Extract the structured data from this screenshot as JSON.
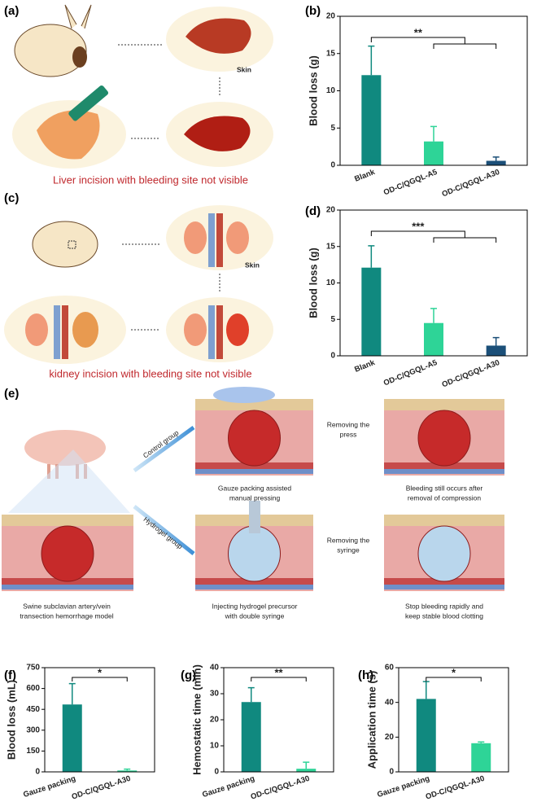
{
  "illustrations": {
    "a": {
      "label": "(a)",
      "skin": "Skin",
      "caption": "Liver incision with bleeding site not visible"
    },
    "c": {
      "label": "(c)",
      "skin": "Skin",
      "caption": "kidney incision with bleeding site not visible"
    },
    "e": {
      "label": "(e)",
      "control_group": "Control group",
      "hydrogel_group": "Hydrogel group",
      "remove_press": [
        "Removing the",
        "press"
      ],
      "remove_syringe": [
        "Removing the",
        "syringe"
      ],
      "captions": [
        [
          "Gauze packing assisted",
          "manual pressing"
        ],
        [
          "Bleeding still occurs after",
          "removal of compression"
        ],
        [
          "Swine subclavian artery/vein",
          "transection hemorrhage model"
        ],
        [
          "Injecting hydrogel precursor",
          "with double syringe"
        ],
        [
          "Stop bleeding rapidly and",
          "keep stable blood clotting"
        ]
      ]
    }
  },
  "chart_data": [
    {
      "type": "bar",
      "panel": "(b)",
      "ylabel": "Blood loss (g)",
      "categories": [
        "Blank",
        "OD-C/QGQL-A5",
        "OD-C/QGQL-A30"
      ],
      "values": [
        12.1,
        3.2,
        0.6
      ],
      "errors": [
        3.9,
        2.0,
        0.5
      ],
      "colors": [
        "#10897f",
        "#2ed497",
        "#1b4f78"
      ],
      "ylim": [
        0,
        20
      ],
      "yticks": [
        0,
        5,
        10,
        15,
        20
      ],
      "significance": "**"
    },
    {
      "type": "bar",
      "panel": "(d)",
      "ylabel": "Blood loss (g)",
      "categories": [
        "Blank",
        "OD-C/QGQL-A5",
        "OD-C/QGQL-A30"
      ],
      "values": [
        12.1,
        4.5,
        1.4
      ],
      "errors": [
        3.0,
        2.0,
        1.1
      ],
      "colors": [
        "#10897f",
        "#2ed497",
        "#1b4f78"
      ],
      "ylim": [
        0,
        20
      ],
      "yticks": [
        0,
        5,
        10,
        15,
        20
      ],
      "significance": "***"
    },
    {
      "type": "bar",
      "panel": "(f)",
      "ylabel": "Blood loss (mL)",
      "categories": [
        "Gauze packing",
        "OD-C/QGQL-A30"
      ],
      "values": [
        485,
        10
      ],
      "errors": [
        150,
        10
      ],
      "colors": [
        "#10897f",
        "#2ed497"
      ],
      "ylim": [
        0,
        750
      ],
      "yticks": [
        0,
        150,
        300,
        450,
        600,
        750
      ],
      "significance": "*"
    },
    {
      "type": "bar",
      "panel": "(g)",
      "ylabel": "Hemostatic time (min)",
      "categories": [
        "Gauze packing",
        "OD-C/QGQL-A30"
      ],
      "values": [
        26.8,
        1.2
      ],
      "errors": [
        5.5,
        2.5
      ],
      "colors": [
        "#10897f",
        "#2ed497"
      ],
      "ylim": [
        0,
        40
      ],
      "yticks": [
        0,
        10,
        20,
        30,
        40
      ],
      "significance": "**"
    },
    {
      "type": "bar",
      "panel": "(h)",
      "ylabel": "Application time (s)",
      "categories": [
        "Gauze packing",
        "OD-C/QGQL-A30"
      ],
      "values": [
        42,
        16.5
      ],
      "errors": [
        10,
        0.7
      ],
      "colors": [
        "#10897f",
        "#2ed497"
      ],
      "ylim": [
        0,
        60
      ],
      "yticks": [
        0,
        20,
        40,
        60
      ],
      "significance": "*"
    }
  ]
}
